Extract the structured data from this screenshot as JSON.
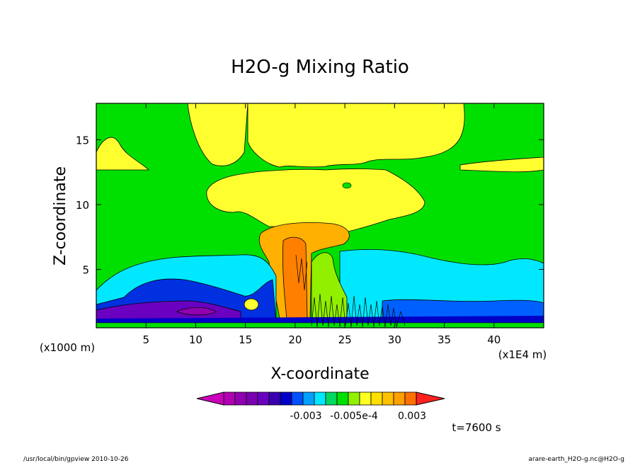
{
  "chart_data": {
    "type": "heatmap",
    "title": "H2O-g Mixing Ratio",
    "xlabel": "X-coordinate",
    "ylabel": "Z-coordinate",
    "x_unit_note": "(x1E4 m)",
    "y_unit_note": "(x1000 m)",
    "xlim": [
      0,
      45
    ],
    "ylim": [
      0.5,
      17.8
    ],
    "xticks": [
      5,
      10,
      15,
      20,
      25,
      30,
      35,
      40
    ],
    "yticks": [
      5,
      10,
      15
    ],
    "colorbar": {
      "colors": [
        "#cc00bb",
        "#b000b0",
        "#9000b0",
        "#7a00b0",
        "#6a00c0",
        "#3a00b0",
        "#0000c8",
        "#0050ff",
        "#00a0ff",
        "#00e8ff",
        "#00d860",
        "#00e000",
        "#90f000",
        "#ffff20",
        "#ffe000",
        "#ffc000",
        "#ffa000",
        "#ff7000",
        "#ff2020"
      ],
      "tick_labels": [
        "-0.003",
        "-0.005e-4",
        "0.003"
      ]
    },
    "regions": [
      {
        "level": "near-zero",
        "color": "#00e000",
        "note": "background"
      },
      {
        "level": "small-positive",
        "color": "#ffff30",
        "note": "upper troposphere plume and anvil"
      },
      {
        "level": "positive",
        "color": "#ffb000",
        "note": "core around x=20"
      },
      {
        "level": "strong-positive",
        "color": "#ff8000",
        "note": "updraft column x=19-21"
      },
      {
        "level": "negative",
        "color": "#00e8ff",
        "note": "low layer z=2-5"
      },
      {
        "level": "more-negative",
        "color": "#0030e0",
        "note": "z=1-3"
      },
      {
        "level": "most-negative",
        "color": "#7000b0",
        "note": "near surface x=10-14"
      }
    ]
  },
  "annotations": {
    "time_label": "t=7600 s",
    "footer_left": "/usr/local/bin/gpview  2010-10-26",
    "footer_right": "arare-earth_H2O-g.nc@H2O-g"
  }
}
